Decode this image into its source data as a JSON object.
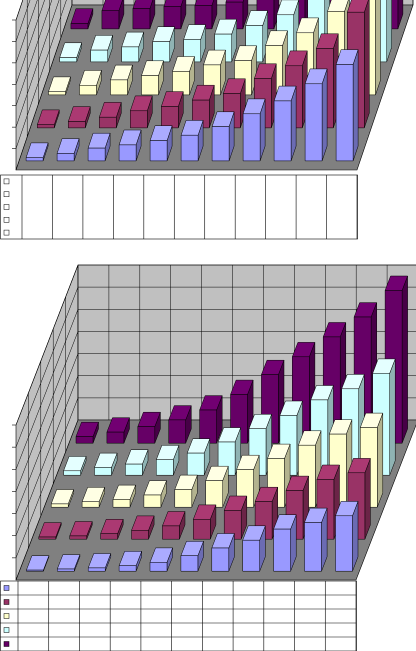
{
  "colors": {
    "wall": "#c0c0c0",
    "floor": "#808080",
    "grid": "#000000",
    "background": "#ffffff"
  },
  "series_colors": [
    "#9999ff",
    "#993366",
    "#ffffcc",
    "#ccffff",
    "#660066"
  ],
  "chart_data": [
    {
      "type": "bar",
      "style": "3d-clustered-columns-with-data-table",
      "title": "",
      "xlabel": "",
      "ylabel": "",
      "ylim": [
        0,
        7
      ],
      "gridlines": true,
      "legend": "data-table-left",
      "categories": [
        "",
        "",
        "",
        "",
        "",
        "",
        "",
        "",
        "",
        "",
        ""
      ],
      "series": [
        {
          "values": [
            0.15,
            0.35,
            0.6,
            0.75,
            0.95,
            1.2,
            1.6,
            2.2,
            2.8,
            3.6,
            4.5
          ]
        },
        {
          "values": [
            0.15,
            0.3,
            0.5,
            0.8,
            1.0,
            1.3,
            1.6,
            2.3,
            2.9,
            3.7,
            5.4
          ]
        },
        {
          "values": [
            0.15,
            0.45,
            0.7,
            0.9,
            1.1,
            1.4,
            1.6,
            2.3,
            2.9,
            3.9,
            5.8
          ]
        },
        {
          "values": [
            0.2,
            0.55,
            0.7,
            0.95,
            1.05,
            1.3,
            1.7,
            2.2,
            3.0,
            3.9,
            6.2
          ]
        },
        {
          "values": [
            0.25,
            0.85,
            0.95,
            1.05,
            1.1,
            1.25,
            1.5,
            2.0,
            2.8,
            3.4,
            5.8
          ]
        }
      ]
    },
    {
      "type": "bar",
      "style": "3d-clustered-columns-with-data-table",
      "title": "",
      "xlabel": "",
      "ylabel": "",
      "ylim": [
        0,
        7
      ],
      "gridlines": true,
      "legend": "data-table-left",
      "categories": [
        "",
        "",
        "",
        "",
        "",
        "",
        "",
        "",
        "",
        "",
        ""
      ],
      "series": [
        {
          "values": [
            0.05,
            0.1,
            0.15,
            0.25,
            0.4,
            0.7,
            1.05,
            1.4,
            1.9,
            2.2,
            2.5
          ]
        },
        {
          "values": [
            0.1,
            0.15,
            0.25,
            0.4,
            0.6,
            0.9,
            1.3,
            1.7,
            2.2,
            2.7,
            3.0
          ]
        },
        {
          "values": [
            0.15,
            0.25,
            0.35,
            0.55,
            0.8,
            1.2,
            1.7,
            2.2,
            2.8,
            3.3,
            3.6
          ]
        },
        {
          "values": [
            0.2,
            0.35,
            0.5,
            0.7,
            1.0,
            1.5,
            2.1,
            2.7,
            3.4,
            3.9,
            4.6
          ]
        },
        {
          "values": [
            0.3,
            0.5,
            0.75,
            1.05,
            1.5,
            2.2,
            3.1,
            3.9,
            4.8,
            5.7,
            6.9
          ]
        }
      ]
    }
  ]
}
